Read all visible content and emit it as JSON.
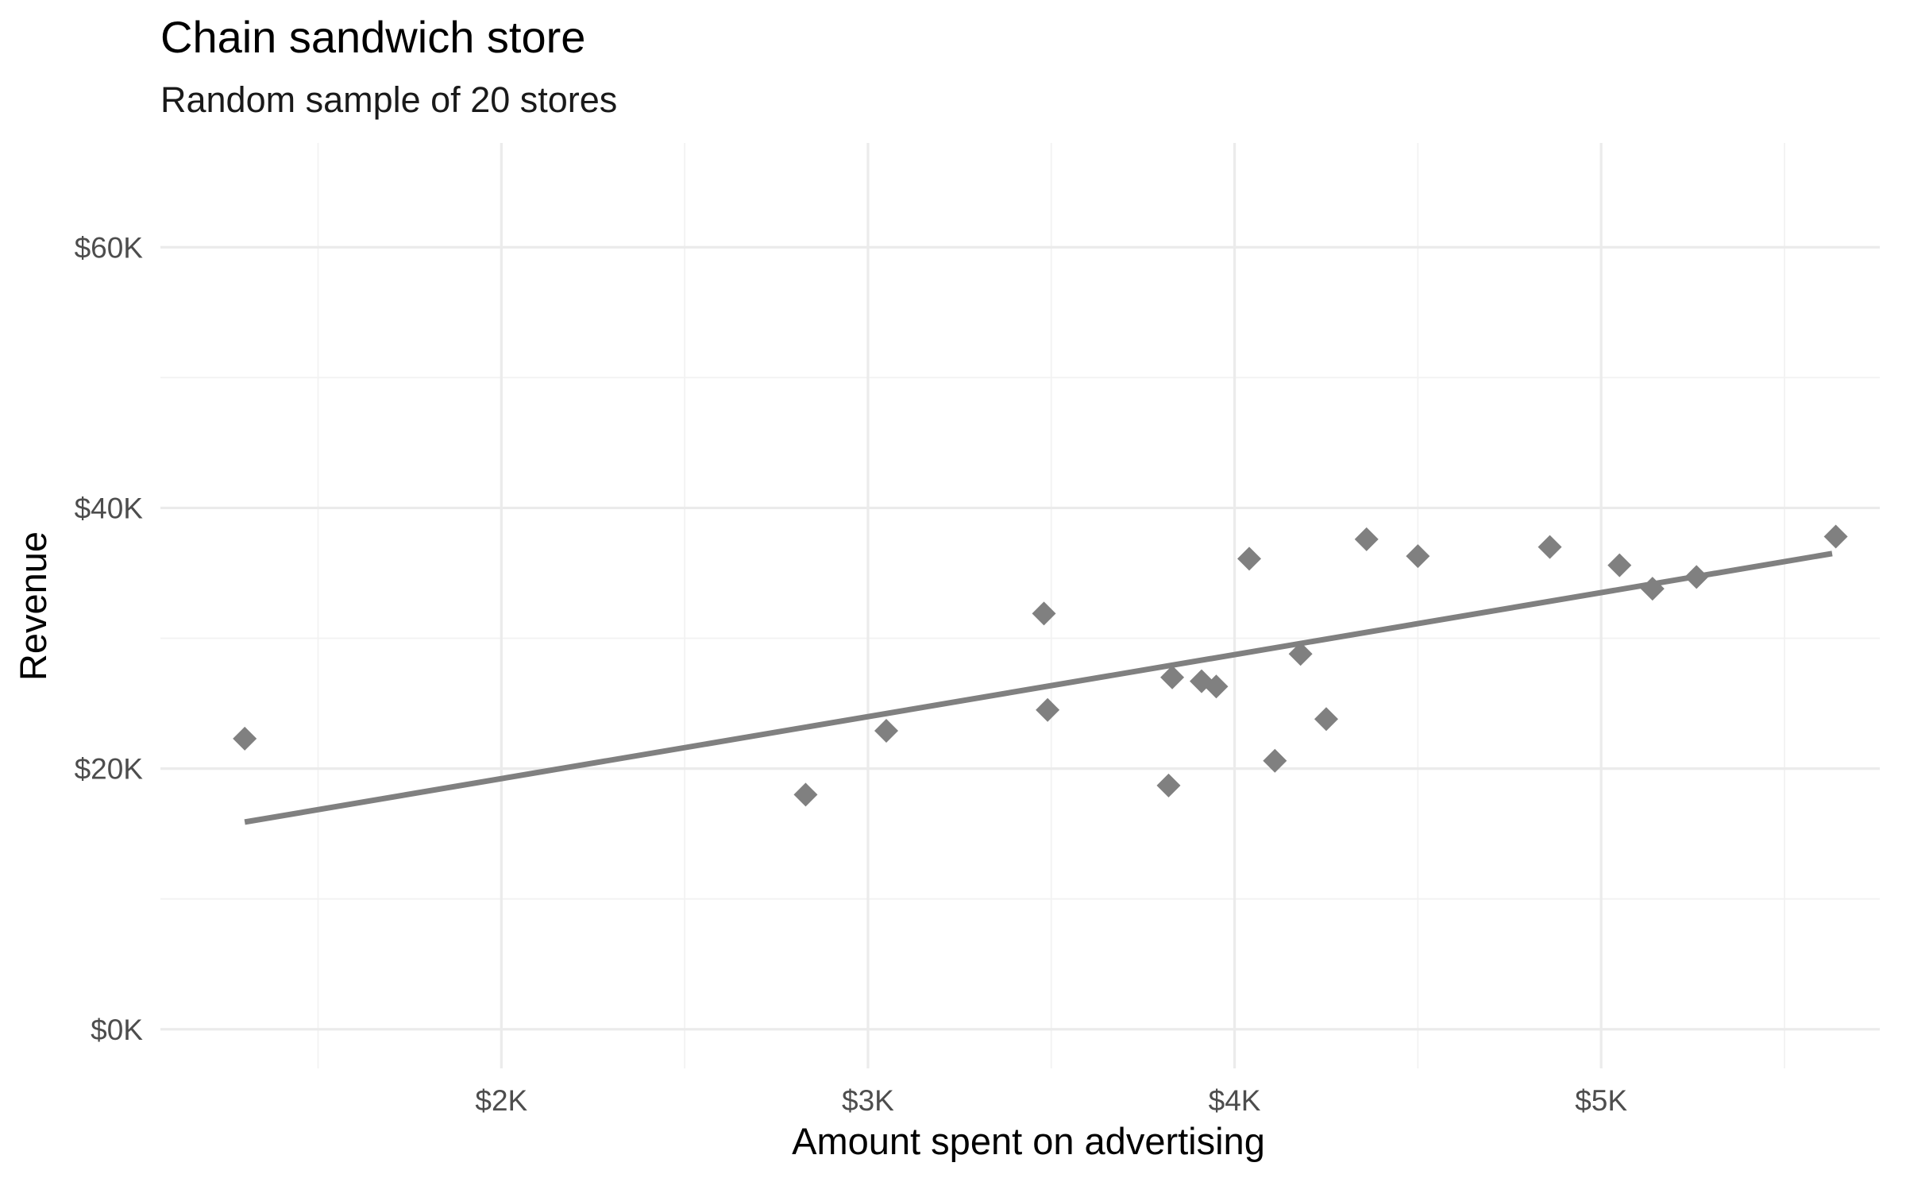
{
  "chart_data": {
    "type": "scatter",
    "title": "Chain sandwich store",
    "subtitle": "Random sample of 20 stores",
    "xlabel": "Amount spent on advertising",
    "ylabel": "Revenue",
    "xlim": [
      1070,
      5760
    ],
    "ylim": [
      -3000,
      68000
    ],
    "x_ticks": [
      {
        "value": 2000,
        "label": "$2K"
      },
      {
        "value": 3000,
        "label": "$3K"
      },
      {
        "value": 4000,
        "label": "$4K"
      },
      {
        "value": 5000,
        "label": "$5K"
      }
    ],
    "x_minor_ticks": [
      1500,
      2500,
      3500,
      4500,
      5500
    ],
    "y_ticks": [
      {
        "value": 0,
        "label": "$0K"
      },
      {
        "value": 20000,
        "label": "$20K"
      },
      {
        "value": 40000,
        "label": "$40K"
      },
      {
        "value": 60000,
        "label": "$60K"
      }
    ],
    "y_minor_ticks": [
      10000,
      30000,
      50000
    ],
    "grid": true,
    "marker": "diamond",
    "color": "#808080",
    "points": [
      {
        "x": 1300,
        "y": 22300
      },
      {
        "x": 2830,
        "y": 18000
      },
      {
        "x": 3050,
        "y": 22900
      },
      {
        "x": 3480,
        "y": 31900
      },
      {
        "x": 3490,
        "y": 24500
      },
      {
        "x": 3820,
        "y": 18700
      },
      {
        "x": 3830,
        "y": 27000
      },
      {
        "x": 3910,
        "y": 26700
      },
      {
        "x": 3950,
        "y": 26300
      },
      {
        "x": 4040,
        "y": 36100
      },
      {
        "x": 4110,
        "y": 20600
      },
      {
        "x": 4180,
        "y": 28800
      },
      {
        "x": 4250,
        "y": 23800
      },
      {
        "x": 4360,
        "y": 37600
      },
      {
        "x": 4500,
        "y": 36300
      },
      {
        "x": 4860,
        "y": 37000
      },
      {
        "x": 5050,
        "y": 35600
      },
      {
        "x": 5140,
        "y": 33800
      },
      {
        "x": 5260,
        "y": 34700
      },
      {
        "x": 5640,
        "y": 37800
      }
    ],
    "fit_line": {
      "x": [
        1300,
        5630
      ],
      "y": [
        15900,
        36500
      ]
    }
  }
}
